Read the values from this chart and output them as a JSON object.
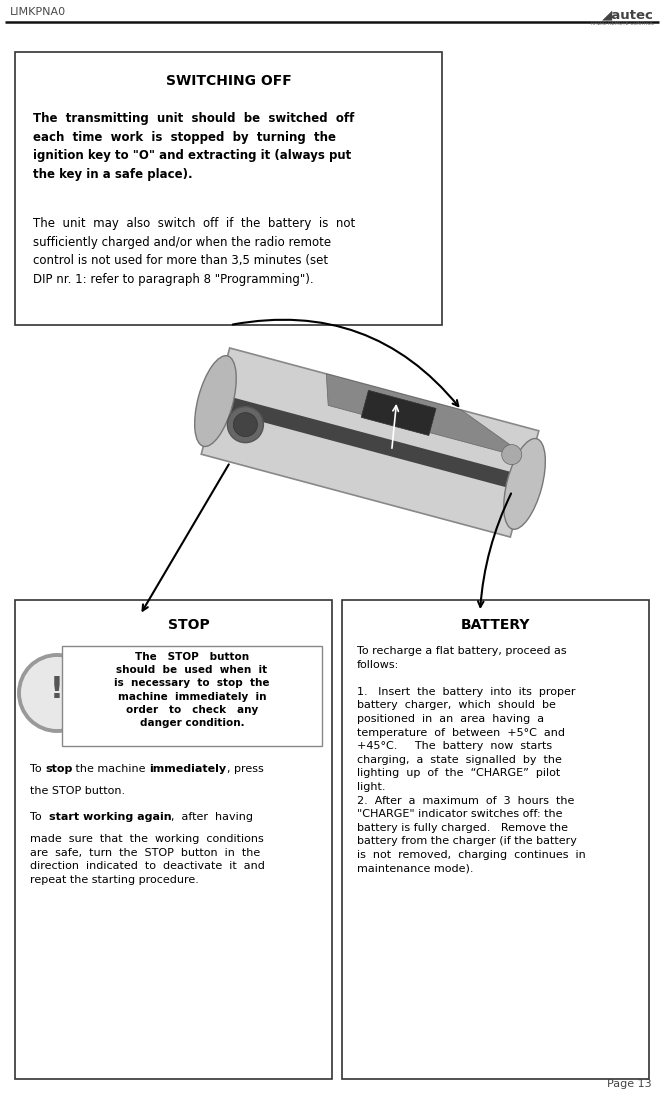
{
  "page_width": 6.64,
  "page_height": 10.99,
  "dpi": 100,
  "bg_color": "#ffffff",
  "header_text": "LIMKPNA0",
  "header_color": "#4a4a4a",
  "page_number": "Page 13",
  "top_box": {
    "title": "SWITCHING OFF",
    "bold_text": "The  transmitting  unit  should  be  switched  off\neach  time  work  is  stopped  by  turning  the\nignition key to \"O\" and extracting it (always put\nthe key in a safe place).",
    "normal_text": "The  unit  may  also  switch  off  if  the  battery  is  not\nsufficiently charged and/or when the radio remote\ncontrol is not used for more than 3,5 minutes (set\nDIP nr. 1: refer to paragraph 8 \"Programming\")."
  },
  "stop_box": {
    "title": "STOP",
    "warn_text": "The   STOP   button\nshould  be  used  when  it\nis  necessary  to  stop  the\nmachine  immediately  in\norder   to   check   any\ndanger condition.",
    "line1_pre": "To ",
    "line1_bold1": "stop",
    "line1_mid": " the machine ",
    "line1_bold2": "immediately",
    "line1_end": ", press",
    "line1b": "the STOP button.",
    "line2_pre": "To  ",
    "line2_bold": "start working again",
    "line2_end": ",  after  having\nmade  sure  that  the  working  conditions\nare  safe,  turn  the  STOP  button  in  the\ndirection  indicated  to  deactivate  it  and\nrepeat the starting procedure."
  },
  "battery_box": {
    "title": "BATTERY",
    "text": "To recharge a flat battery, proceed as\nfollows:\n\n1.   Insert  the  battery  into  its  proper\nbattery  charger,  which  should  be\npositioned  in  an  area  having  a\ntemperature  of  between  +5°C  and\n+45°C.     The  battery  now  starts\ncharging,  a  state  signalled  by  the\nlighting  up  of  the  “CHARGE”  pilot\nlight.\n2.  After  a  maximum  of  3  hours  the\n\"CHARGE\" indicator switches off: the\nbattery is fully charged.   Remove the\nbattery from the charger (if the battery\nis  not  removed,  charging  continues  in\nmaintenance mode)."
  }
}
